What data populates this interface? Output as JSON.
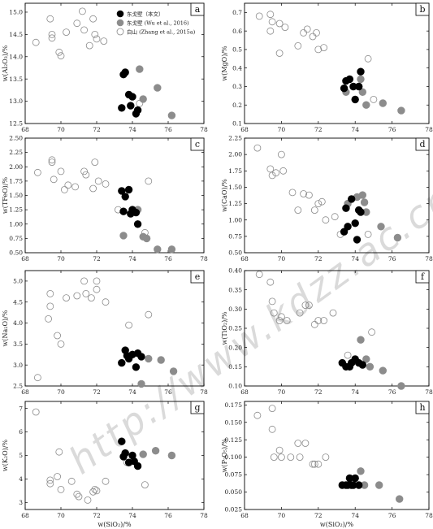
{
  "watermark": "http://www.kdzz.ac.cn/",
  "legend": {
    "items": [
      {
        "label": "东戈壁（本文）",
        "style": "filled-black"
      },
      {
        "label": "东戈壁 (Wu et al., 2016)",
        "style": "filled-gray"
      },
      {
        "label": "白山 (Zhang et al., 2015a)",
        "style": "open"
      }
    ]
  },
  "colors": {
    "black": "#000000",
    "gray": "#8c8c8c",
    "open_stroke": "#8a8a8a"
  },
  "chart_data": [
    {
      "type": "scatter",
      "panel": "a",
      "ylabel": "w(Al2O3)/%",
      "ylim": [
        12.5,
        15.2
      ],
      "yticks": [
        "12.5",
        "13.0",
        "13.5",
        "14.0",
        "14.5",
        "15.0"
      ],
      "ydigits": 1,
      "xlim": [
        68,
        78
      ],
      "xticks": [
        "68",
        "70",
        "72",
        "74",
        "76",
        "78"
      ],
      "series": [
        {
          "name": "东戈壁（本文）",
          "x": [
            73.4,
            73.5,
            73.6,
            73.8,
            73.9,
            74.0,
            74.2,
            74.3
          ],
          "y": [
            12.85,
            13.6,
            13.65,
            13.15,
            12.9,
            13.1,
            12.72,
            12.8
          ]
        },
        {
          "name": "东戈壁 (Wu et al., 2016)",
          "x": [
            74.4,
            74.6,
            75.4,
            76.2
          ],
          "y": [
            13.72,
            13.05,
            13.3,
            12.68
          ]
        },
        {
          "name": "白山 (Zhang et al., 2015a)",
          "x": [
            68.6,
            69.4,
            69.5,
            69.5,
            69.9,
            70.0,
            70.3,
            70.9,
            71.2,
            71.3,
            71.6,
            71.8,
            71.9,
            72.0,
            72.4,
            74.4
          ],
          "y": [
            14.32,
            14.85,
            14.5,
            14.42,
            14.1,
            14.02,
            14.55,
            14.75,
            15.02,
            14.6,
            14.25,
            14.85,
            14.5,
            14.4,
            14.35,
            12.95
          ]
        }
      ]
    },
    {
      "type": "scatter",
      "panel": "b",
      "ylabel": "w(MgO)/%",
      "ylim": [
        0.1,
        0.75
      ],
      "yticks": [
        "0.1",
        "0.2",
        "0.3",
        "0.4",
        "0.5",
        "0.6",
        "0.7"
      ],
      "ydigits": 1,
      "xlim": [
        68,
        78
      ],
      "xticks": [
        "68",
        "70",
        "72",
        "74",
        "76",
        "78"
      ],
      "series": [
        {
          "name": "东戈壁（本文）",
          "x": [
            73.4,
            73.5,
            73.7,
            73.9,
            74.0,
            74.2,
            74.3
          ],
          "y": [
            0.29,
            0.33,
            0.34,
            0.3,
            0.23,
            0.3,
            0.38
          ]
        },
        {
          "name": "东戈壁 (Wu et al., 2016)",
          "x": [
            73.5,
            74.3,
            74.4,
            74.6,
            75.5,
            76.5
          ],
          "y": [
            0.27,
            0.34,
            0.27,
            0.2,
            0.21,
            0.17
          ]
        },
        {
          "name": "白山 (Zhang et al., 2015a)",
          "x": [
            68.8,
            69.4,
            69.4,
            69.5,
            69.9,
            69.9,
            70.2,
            70.9,
            71.2,
            71.4,
            71.7,
            71.9,
            72.0,
            72.3,
            74.7,
            75.0
          ],
          "y": [
            0.68,
            0.69,
            0.6,
            0.65,
            0.64,
            0.48,
            0.62,
            0.52,
            0.59,
            0.61,
            0.57,
            0.59,
            0.5,
            0.51,
            0.45,
            0.23
          ]
        }
      ]
    },
    {
      "type": "scatter",
      "panel": "c",
      "ylabel": "w(TFeO)/%",
      "ylim": [
        0.5,
        2.5
      ],
      "yticks": [
        "0.50",
        "0.75",
        "1.00",
        "1.25",
        "1.50",
        "1.75",
        "2.00",
        "2.25",
        "2.50"
      ],
      "ydigits": 2,
      "xlim": [
        68,
        78
      ],
      "xticks": [
        "68",
        "70",
        "72",
        "74",
        "76",
        "78"
      ],
      "series": [
        {
          "name": "东戈壁（本文）",
          "x": [
            73.4,
            73.5,
            73.6,
            73.8,
            73.9,
            74.0,
            74.2,
            74.3
          ],
          "y": [
            1.58,
            1.22,
            1.48,
            1.6,
            1.18,
            1.25,
            1.2,
            1.0
          ]
        },
        {
          "name": "东戈壁 (Wu et al., 2016)",
          "x": [
            73.5,
            74.3,
            74.6,
            74.8,
            75.4,
            76.2
          ],
          "y": [
            0.8,
            1.25,
            0.78,
            0.75,
            0.56,
            0.56
          ]
        },
        {
          "name": "白山 (Zhang et al., 2015a)",
          "x": [
            68.7,
            69.5,
            69.5,
            69.6,
            70.0,
            70.2,
            70.4,
            70.8,
            71.3,
            71.4,
            71.8,
            71.9,
            72.1,
            72.5,
            73.2,
            74.7,
            74.9
          ],
          "y": [
            1.9,
            2.12,
            2.08,
            1.78,
            1.92,
            1.6,
            1.68,
            1.65,
            1.92,
            1.86,
            1.62,
            2.08,
            1.75,
            1.7,
            1.25,
            0.85,
            1.75
          ]
        }
      ]
    },
    {
      "type": "scatter",
      "panel": "d",
      "ylabel": "w(CaO)/%",
      "ylim": [
        0.5,
        2.25
      ],
      "yticks": [
        "0.50",
        "0.75",
        "1.00",
        "1.25",
        "1.50",
        "1.75",
        "2.00",
        "2.25"
      ],
      "ydigits": 2,
      "xlim": [
        68,
        78
      ],
      "xticks": [
        "68",
        "70",
        "72",
        "74",
        "76",
        "78"
      ],
      "series": [
        {
          "name": "东戈壁（本文）",
          "x": [
            73.4,
            73.5,
            73.6,
            73.8,
            74.0,
            74.1,
            74.2,
            74.3
          ],
          "y": [
            0.82,
            1.18,
            0.9,
            1.32,
            0.95,
            0.7,
            1.15,
            1.12
          ]
        },
        {
          "name": "东戈壁 (Wu et al., 2016)",
          "x": [
            73.6,
            74.1,
            74.4,
            74.5,
            74.6,
            75.4,
            76.3
          ],
          "y": [
            1.25,
            1.35,
            1.38,
            1.27,
            1.12,
            0.9,
            0.73
          ]
        },
        {
          "name": "白山 (Zhang et al., 2015a)",
          "x": [
            68.7,
            69.4,
            69.5,
            69.7,
            70.0,
            70.1,
            70.6,
            70.9,
            71.2,
            71.5,
            71.8,
            72.0,
            72.2,
            72.4,
            72.9,
            73.2,
            74.7
          ],
          "y": [
            2.1,
            1.78,
            1.68,
            1.72,
            2.0,
            1.75,
            1.42,
            1.15,
            1.4,
            1.38,
            1.15,
            1.25,
            1.28,
            1.0,
            1.05,
            0.78,
            0.78
          ]
        }
      ]
    },
    {
      "type": "scatter",
      "panel": "e",
      "ylabel": "w(Na2O)/%",
      "ylim": [
        2.5,
        5.25
      ],
      "yticks": [
        "2.5",
        "3.0",
        "3.5",
        "4.0",
        "4.5",
        "5.0"
      ],
      "ydigits": 1,
      "xlim": [
        68,
        78
      ],
      "xticks": [
        "68",
        "70",
        "72",
        "74",
        "76",
        "78"
      ],
      "series": [
        {
          "name": "东戈壁（本文）",
          "x": [
            73.4,
            73.6,
            73.7,
            73.8,
            74.0,
            74.2,
            74.3,
            74.5
          ],
          "y": [
            3.05,
            3.35,
            3.22,
            3.15,
            3.25,
            2.95,
            3.28,
            3.2
          ]
        },
        {
          "name": "东戈壁 (Wu et al., 2016)",
          "x": [
            74.5,
            74.9,
            75.6,
            76.3
          ],
          "y": [
            2.55,
            3.15,
            3.12,
            2.85
          ]
        },
        {
          "name": "白山 (Zhang et al., 2015a)",
          "x": [
            68.7,
            69.3,
            69.4,
            69.4,
            69.8,
            70.0,
            70.3,
            70.9,
            71.3,
            71.4,
            71.7,
            72.0,
            72.0,
            72.5,
            73.8,
            74.9
          ],
          "y": [
            2.7,
            4.1,
            4.4,
            4.7,
            3.7,
            3.5,
            4.6,
            4.65,
            5.0,
            4.7,
            4.6,
            5.0,
            4.8,
            4.5,
            3.95,
            4.2
          ]
        }
      ]
    },
    {
      "type": "scatter",
      "panel": "f",
      "ylabel": "w(TiO2)/%",
      "ylim": [
        0.1,
        0.4
      ],
      "yticks": [
        "0.10",
        "0.15",
        "0.20",
        "0.25",
        "0.30",
        "0.35",
        "0.40"
      ],
      "ydigits": 2,
      "xlim": [
        68,
        78
      ],
      "xticks": [
        "68",
        "70",
        "72",
        "74",
        "76",
        "78"
      ],
      "series": [
        {
          "name": "东戈壁（本文）",
          "x": [
            73.3,
            73.5,
            73.7,
            73.8,
            74.0,
            74.2,
            74.4
          ],
          "y": [
            0.16,
            0.15,
            0.15,
            0.16,
            0.17,
            0.16,
            0.155
          ]
        },
        {
          "name": "东戈壁 (Wu et al., 2016)",
          "x": [
            74.3,
            74.6,
            74.8,
            75.5,
            76.5
          ],
          "y": [
            0.22,
            0.17,
            0.15,
            0.14,
            0.1
          ]
        },
        {
          "name": "白山 (Zhang et al., 2015a)",
          "x": [
            68.8,
            69.4,
            69.5,
            69.6,
            69.9,
            70.0,
            70.3,
            71.0,
            71.3,
            71.5,
            71.8,
            72.0,
            72.3,
            72.8,
            73.6,
            74.9
          ],
          "y": [
            0.39,
            0.37,
            0.32,
            0.29,
            0.27,
            0.28,
            0.27,
            0.29,
            0.31,
            0.31,
            0.26,
            0.27,
            0.27,
            0.29,
            0.18,
            0.24
          ]
        }
      ]
    },
    {
      "type": "scatter",
      "panel": "g",
      "ylabel": "w(K2O)/%",
      "ylim": [
        2.7,
        7.3
      ],
      "yticks": [
        "3",
        "4",
        "5",
        "6",
        "7"
      ],
      "ydigits": 0,
      "xlim": [
        68,
        78
      ],
      "xticks": [
        "68",
        "70",
        "72",
        "74",
        "76",
        "78"
      ],
      "xlabel": "w(SiO2)/%",
      "series": [
        {
          "name": "东戈壁（本文）",
          "x": [
            73.4,
            73.5,
            73.6,
            73.8,
            74.0,
            74.1,
            74.3
          ],
          "y": [
            5.6,
            4.95,
            5.1,
            4.7,
            5.0,
            4.75,
            4.55
          ]
        },
        {
          "name": "东戈壁 (Wu et al., 2016)",
          "x": [
            74.6,
            75.3,
            76.2
          ],
          "y": [
            5.05,
            5.2,
            5.0
          ]
        },
        {
          "name": "白山 (Zhang et al., 2015a)",
          "x": [
            68.6,
            69.4,
            69.4,
            69.8,
            69.9,
            70.0,
            70.6,
            70.9,
            71.0,
            71.5,
            71.8,
            71.9,
            72.0,
            72.5,
            73.7,
            74.7
          ],
          "y": [
            6.85,
            3.8,
            3.95,
            4.1,
            5.15,
            3.55,
            3.9,
            3.35,
            3.25,
            3.1,
            3.45,
            3.55,
            3.5,
            3.9,
            4.7,
            3.75
          ]
        }
      ]
    },
    {
      "type": "scatter",
      "panel": "h",
      "ylabel": "w(P2O5)/%",
      "ylim": [
        0.025,
        0.18
      ],
      "yticks": [
        "0.025",
        "0.050",
        "0.075",
        "0.100",
        "0.125",
        "0.150",
        "0.175"
      ],
      "ydigits": 3,
      "xlim": [
        68,
        78
      ],
      "xticks": [
        "68",
        "70",
        "72",
        "74",
        "76",
        "78"
      ],
      "xlabel": "w(SiO2)/%",
      "series": [
        {
          "name": "东戈壁（本文）",
          "x": [
            73.3,
            73.5,
            73.6,
            73.7,
            73.8,
            73.9,
            74.0,
            74.2
          ],
          "y": [
            0.06,
            0.06,
            0.06,
            0.07,
            0.06,
            0.06,
            0.07,
            0.06
          ]
        },
        {
          "name": "东戈壁 (Wu et al., 2016)",
          "x": [
            74.3,
            74.5,
            75.3,
            76.4
          ],
          "y": [
            0.08,
            0.06,
            0.06,
            0.04
          ]
        },
        {
          "name": "白山 (Zhang et al., 2015a)",
          "x": [
            68.7,
            69.5,
            69.5,
            69.6,
            69.9,
            70.0,
            70.5,
            70.9,
            71.0,
            71.3,
            71.7,
            71.8,
            72.0,
            72.4,
            74.3
          ],
          "y": [
            0.16,
            0.17,
            0.14,
            0.1,
            0.11,
            0.1,
            0.1,
            0.12,
            0.1,
            0.12,
            0.09,
            0.09,
            0.09,
            0.1,
            0.08
          ]
        }
      ]
    }
  ]
}
